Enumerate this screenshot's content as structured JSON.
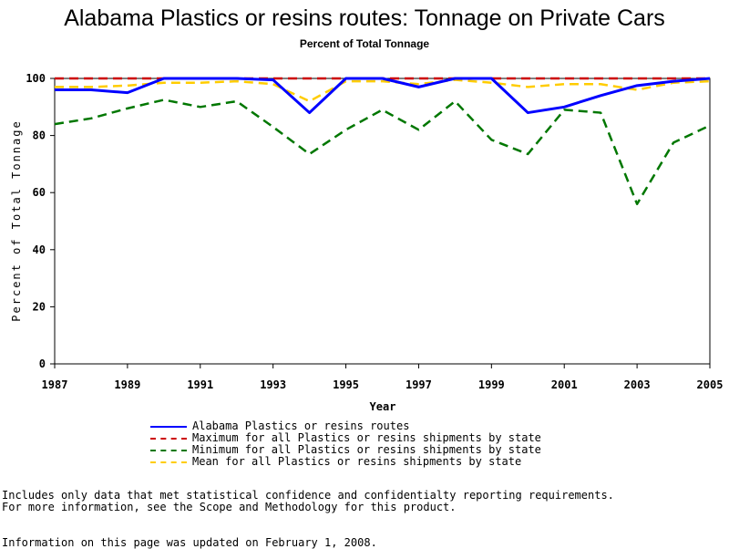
{
  "chart_data": {
    "type": "line",
    "title": "Alabama Plastics or resins routes: Tonnage on Private Cars",
    "subtitle": "Percent of Total Tonnage",
    "xlabel": "Year",
    "ylabel": "Percent of Total Tonnage",
    "xlim": [
      1987,
      2005
    ],
    "ylim": [
      0,
      100
    ],
    "x_ticks": [
      1987,
      1989,
      1991,
      1993,
      1995,
      1997,
      1999,
      2001,
      2003,
      2005
    ],
    "y_ticks": [
      0,
      20,
      40,
      60,
      80,
      100
    ],
    "x": [
      1987,
      1988,
      1989,
      1990,
      1991,
      1992,
      1993,
      1994,
      1995,
      1996,
      1997,
      1998,
      1999,
      2000,
      2001,
      2002,
      2003,
      2004,
      2005
    ],
    "series": [
      {
        "name": "Alabama Plastics or resins routes",
        "color": "#0000ff",
        "style": "solid",
        "values": [
          96,
          96,
          95,
          100,
          100,
          100,
          99.5,
          88,
          100,
          100,
          97,
          100,
          100,
          88,
          90,
          94,
          97.5,
          99,
          100
        ]
      },
      {
        "name": "Maximum for all Plastics or resins shipments by state",
        "color": "#cc0000",
        "style": "dashed",
        "values": [
          100,
          100,
          100,
          100,
          100,
          100,
          100,
          100,
          100,
          100,
          100,
          100,
          100,
          100,
          100,
          100,
          100,
          100,
          100
        ]
      },
      {
        "name": "Minimum for all Plastics or resins shipments by state",
        "color": "#007700",
        "style": "dashed",
        "values": [
          84,
          86,
          89.5,
          92.5,
          90,
          92,
          83,
          73.5,
          82,
          89,
          82,
          92,
          78.5,
          73.5,
          89,
          88,
          56,
          77.5,
          83.5
        ]
      },
      {
        "name": "Mean for all Plastics or resins shipments by state",
        "color": "#ffcc00",
        "style": "dashed",
        "values": [
          97,
          97,
          97.5,
          98.5,
          98.5,
          99,
          98,
          92,
          99,
          99,
          98,
          99.5,
          98.5,
          97,
          98,
          98,
          96,
          98.5,
          99
        ]
      }
    ],
    "legend_position": "bottom"
  },
  "notes": {
    "line1": "Includes only data that met statistical confidence and confidentialty reporting requirements.",
    "line2": "For more information, see the Scope and Methodology for this product.",
    "line3": "Information on this page was updated on February 1, 2008."
  }
}
